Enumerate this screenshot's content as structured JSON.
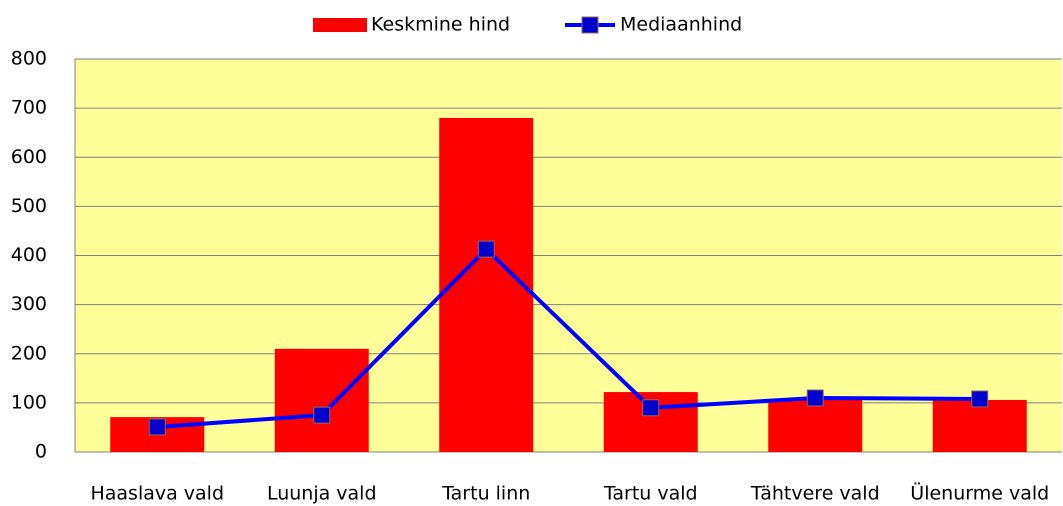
{
  "chart_data": {
    "type": "bar",
    "categories": [
      "Haaslava vald",
      "Luunja vald",
      "Tartu linn",
      "Tartu vald",
      "Tähtvere vald",
      "Ülenurme vald"
    ],
    "series": [
      {
        "name": "Keskmine hind",
        "type": "bar",
        "color": "#ff0000",
        "values": [
          71,
          210,
          680,
          122,
          106,
          106
        ]
      },
      {
        "name": "Mediaanhind",
        "type": "line",
        "color": "#0000ff",
        "marker_color": "#0000cc",
        "values": [
          51,
          75,
          413,
          90,
          110,
          108
        ]
      }
    ],
    "ylim": [
      0,
      800
    ],
    "yticks": [
      0,
      100,
      200,
      300,
      400,
      500,
      600,
      700,
      800
    ],
    "grid": true,
    "legend": "top",
    "plot_background": "#ffff99"
  }
}
